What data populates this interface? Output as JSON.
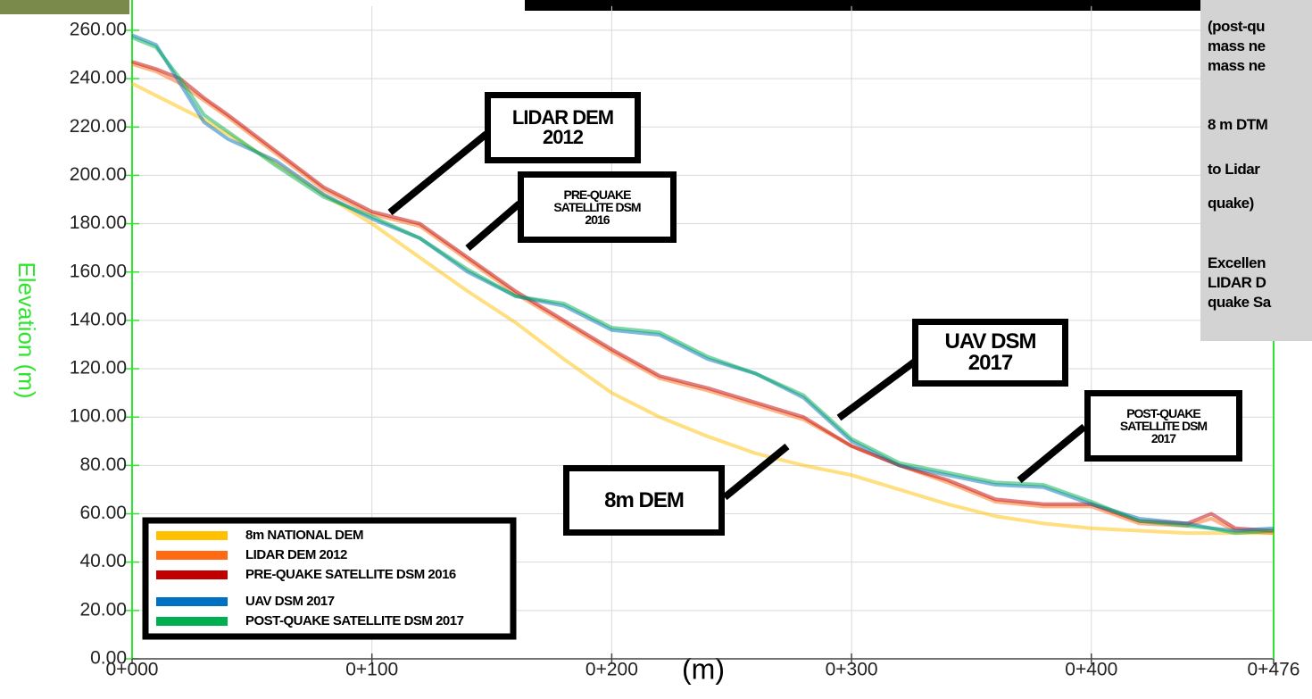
{
  "chart_data": {
    "type": "line",
    "y_label": "Elevation (m)",
    "x_label": "(m)",
    "x": [
      0,
      10,
      20,
      30,
      40,
      60,
      80,
      100,
      120,
      140,
      160,
      180,
      200,
      220,
      240,
      260,
      280,
      300,
      320,
      340,
      360,
      380,
      400,
      420,
      440,
      450,
      460,
      476
    ],
    "series": [
      {
        "name": "8m NATIONAL DEM",
        "color": "#ffc000",
        "values": [
          238,
          233,
          228,
          223,
          217,
          205,
          192,
          180,
          166,
          152,
          139,
          124,
          110,
          100,
          92,
          85,
          80,
          76,
          70,
          64,
          59,
          56,
          54,
          53,
          52,
          52,
          52,
          52
        ]
      },
      {
        "name": "LIDAR DEM 2012",
        "color": "#ff6a13",
        "values": [
          246,
          243,
          238,
          231,
          224,
          209,
          194,
          184,
          179,
          165,
          151,
          139,
          127,
          116,
          111,
          105,
          99,
          88,
          80,
          73,
          65,
          63,
          63,
          56,
          55,
          58,
          53,
          52
        ]
      },
      {
        "name": "PRE-QUAKE SATELLITE DSM 2016",
        "color": "#c00000",
        "values": [
          247,
          244,
          240,
          232,
          225,
          210,
          195,
          185,
          180,
          166,
          152,
          140,
          128,
          117,
          112,
          106,
          100,
          88,
          80,
          74,
          66,
          64,
          64,
          57,
          56,
          60,
          54,
          53
        ]
      },
      {
        "name": "UAV DSM 2017",
        "color": "#0070c0",
        "values": [
          258,
          254,
          238,
          222,
          215,
          206,
          192,
          182,
          174,
          160,
          150,
          146,
          136,
          134,
          124,
          118,
          108,
          90,
          80,
          76,
          72,
          71,
          64,
          58,
          56,
          54,
          53,
          54
        ]
      },
      {
        "name": "POST-QUAKE SATELLITE DSM 2017",
        "color": "#00b050",
        "values": [
          257,
          253,
          240,
          225,
          218,
          204,
          191,
          183,
          174,
          161,
          150,
          147,
          137,
          135,
          125,
          118,
          109,
          91,
          81,
          77,
          73,
          72,
          65,
          57,
          55,
          54,
          52,
          53
        ]
      }
    ],
    "xlim": [
      0,
      476
    ],
    "xticks": [
      {
        "value": 0,
        "label": "0+000"
      },
      {
        "value": 100,
        "label": "0+100"
      },
      {
        "value": 200,
        "label": "0+200"
      },
      {
        "value": 300,
        "label": "0+300"
      },
      {
        "value": 400,
        "label": "0+400"
      },
      {
        "value": 476,
        "label": "0+476"
      }
    ],
    "ylim": [
      0,
      270
    ],
    "yticks": [
      {
        "value": 0,
        "label": "0.00"
      },
      {
        "value": 20,
        "label": "20.00"
      },
      {
        "value": 40,
        "label": "40.00"
      },
      {
        "value": 60,
        "label": "60.00"
      },
      {
        "value": 80,
        "label": "80.00"
      },
      {
        "value": 100,
        "label": "100.00"
      },
      {
        "value": 120,
        "label": "120.00"
      },
      {
        "value": 140,
        "label": "140.00"
      },
      {
        "value": 160,
        "label": "160.00"
      },
      {
        "value": 180,
        "label": "180.00"
      },
      {
        "value": 200,
        "label": "200.00"
      },
      {
        "value": 220,
        "label": "220.00"
      },
      {
        "value": 240,
        "label": "240.00"
      },
      {
        "value": 260,
        "label": "260.00"
      }
    ],
    "grid": true,
    "legend_position": "lower left",
    "annotations": [
      "LIDAR DEM 2012",
      "PRE-QUAKE SATELLITE DSM 2016",
      "UAV DSM 2017",
      "8m DEM",
      "POST-QUAKE SATELLITE DSM 2017"
    ],
    "side_note": [
      "(post-qu",
      "mass ne",
      "mass ne",
      "8 m DTM",
      "to Lidar",
      "quake)",
      "Excellen",
      "LIDAR D",
      "quake Sa"
    ]
  }
}
